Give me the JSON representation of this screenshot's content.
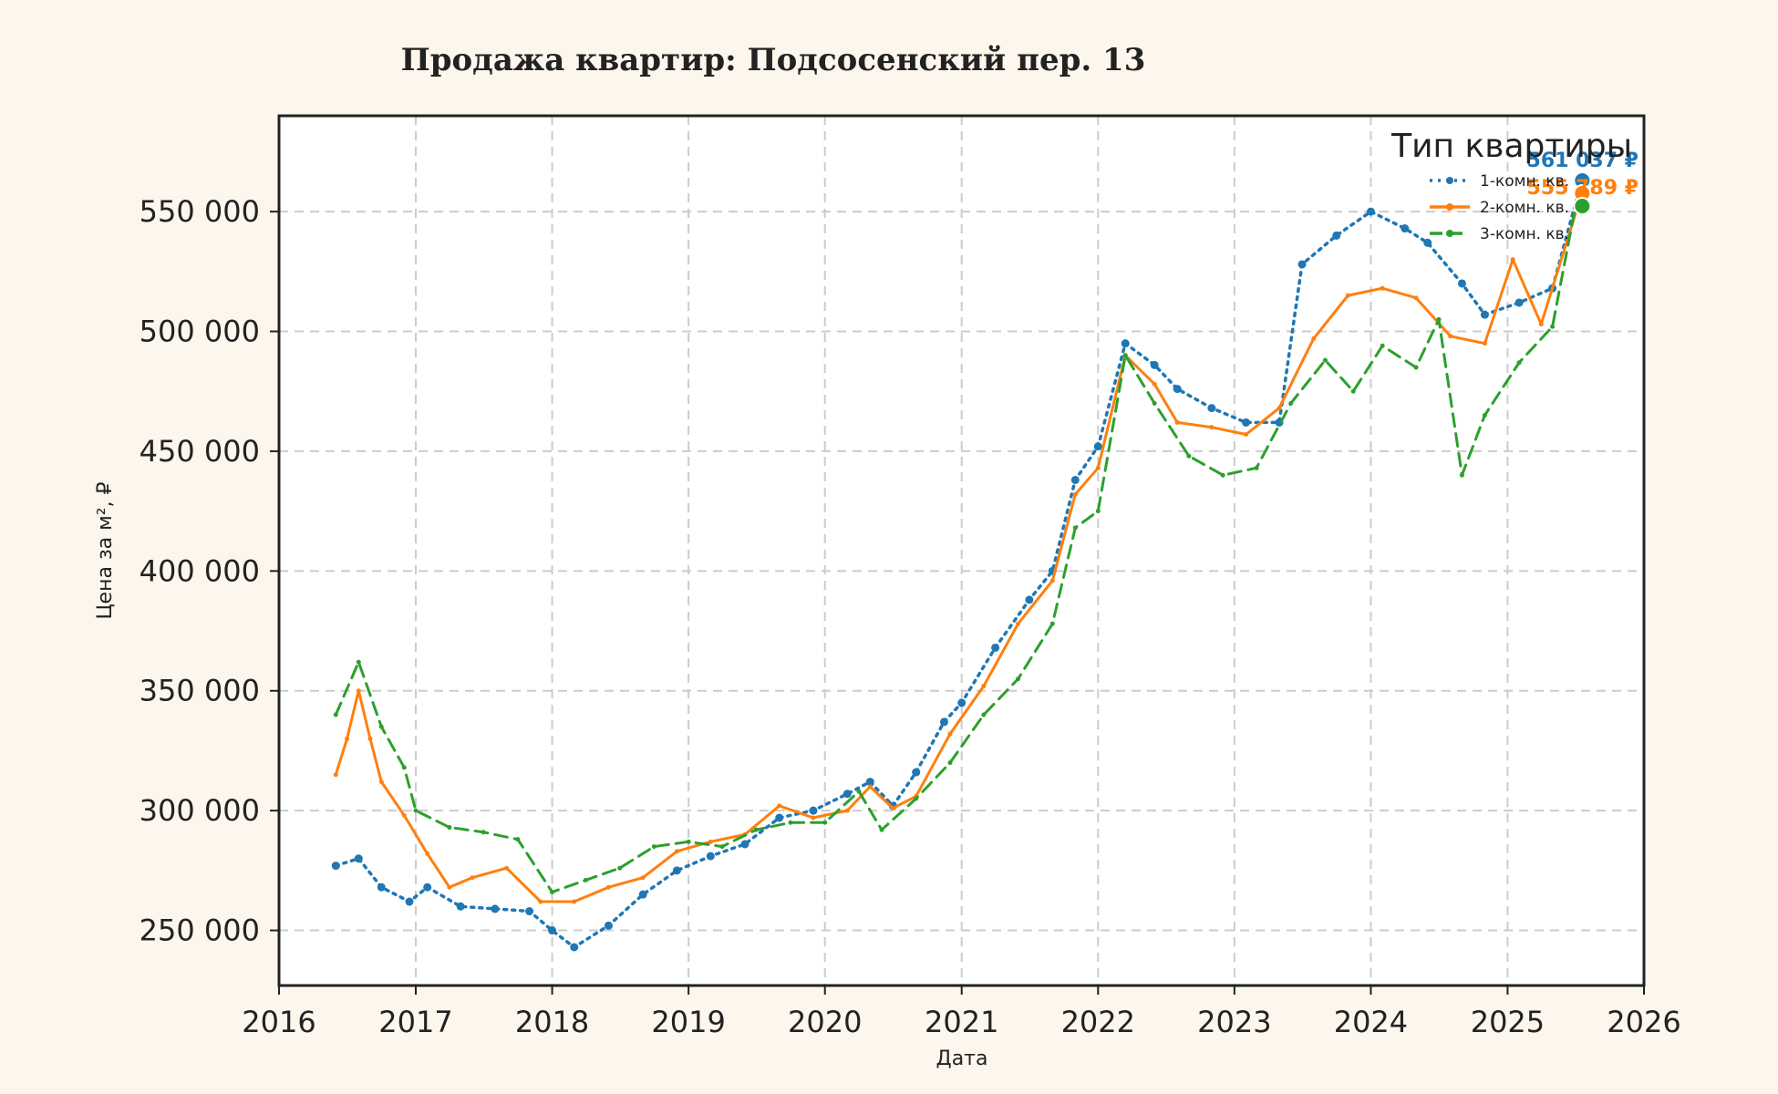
{
  "chart_data": {
    "type": "line",
    "title": "Продажа квартир: Подсосенский пер. 13",
    "xlabel": "Дата",
    "ylabel": "Цена за м², ₽",
    "xlim": [
      "2016-01-01",
      "2026-01-01"
    ],
    "ylim": [
      227000,
      590000
    ],
    "x_ticks": [
      "2016",
      "2017",
      "2018",
      "2019",
      "2020",
      "2021",
      "2022",
      "2023",
      "2024",
      "2025",
      "2026"
    ],
    "y_ticks": [
      250000,
      300000,
      350000,
      400000,
      450000,
      500000,
      550000
    ],
    "y_tick_labels": [
      "250 000",
      "300 000",
      "350 000",
      "400 000",
      "450 000",
      "500 000",
      "550 000"
    ],
    "grid": true,
    "legend": {
      "title": "Тип квартиры",
      "position": "top-right",
      "entries": [
        "1-комн. кв.",
        "2-комн. кв.",
        "3-комн. кв."
      ]
    },
    "series": [
      {
        "name": "1-комн. кв.",
        "color": "#1f77b4",
        "style": "dotted",
        "end_label": "561 037 ₽",
        "points": [
          [
            "2016-06-01",
            277000
          ],
          [
            "2016-08-01",
            280000
          ],
          [
            "2016-10-01",
            268000
          ],
          [
            "2016-12-15",
            262000
          ],
          [
            "2017-02-01",
            268000
          ],
          [
            "2017-05-01",
            260000
          ],
          [
            "2017-08-01",
            259000
          ],
          [
            "2017-11-01",
            258000
          ],
          [
            "2018-01-01",
            250000
          ],
          [
            "2018-03-01",
            243000
          ],
          [
            "2018-06-01",
            252000
          ],
          [
            "2018-09-01",
            265000
          ],
          [
            "2018-12-01",
            275000
          ],
          [
            "2019-03-01",
            281000
          ],
          [
            "2019-06-01",
            286000
          ],
          [
            "2019-09-01",
            297000
          ],
          [
            "2019-12-01",
            300000
          ],
          [
            "2020-03-01",
            307000
          ],
          [
            "2020-05-01",
            312000
          ],
          [
            "2020-07-01",
            302000
          ],
          [
            "2020-09-01",
            316000
          ],
          [
            "2020-11-15",
            337000
          ],
          [
            "2021-01-01",
            345000
          ],
          [
            "2021-04-01",
            368000
          ],
          [
            "2021-07-01",
            388000
          ],
          [
            "2021-09-01",
            400000
          ],
          [
            "2021-11-01",
            438000
          ],
          [
            "2022-01-01",
            452000
          ],
          [
            "2022-03-15",
            495000
          ],
          [
            "2022-06-01",
            486000
          ],
          [
            "2022-08-01",
            476000
          ],
          [
            "2022-11-01",
            468000
          ],
          [
            "2023-02-01",
            462000
          ],
          [
            "2023-05-01",
            462000
          ],
          [
            "2023-07-01",
            528000
          ],
          [
            "2023-10-01",
            540000
          ],
          [
            "2024-01-01",
            550000
          ],
          [
            "2024-04-01",
            543000
          ],
          [
            "2024-06-01",
            537000
          ],
          [
            "2024-09-01",
            520000
          ],
          [
            "2024-11-01",
            507000
          ],
          [
            "2025-02-01",
            512000
          ],
          [
            "2025-05-01",
            518000
          ],
          [
            "2025-07-15",
            561037
          ]
        ]
      },
      {
        "name": "2-комн. кв.",
        "color": "#ff7f0e",
        "style": "solid",
        "end_label": "555 789 ₽",
        "points": [
          [
            "2016-06-01",
            315000
          ],
          [
            "2016-07-01",
            330000
          ],
          [
            "2016-08-01",
            350000
          ],
          [
            "2016-09-01",
            330000
          ],
          [
            "2016-10-01",
            312000
          ],
          [
            "2016-12-01",
            298000
          ],
          [
            "2017-02-01",
            282000
          ],
          [
            "2017-04-01",
            268000
          ],
          [
            "2017-06-01",
            272000
          ],
          [
            "2017-09-01",
            276000
          ],
          [
            "2017-12-01",
            262000
          ],
          [
            "2018-03-01",
            262000
          ],
          [
            "2018-06-01",
            268000
          ],
          [
            "2018-09-01",
            272000
          ],
          [
            "2018-12-01",
            283000
          ],
          [
            "2019-03-01",
            287000
          ],
          [
            "2019-06-01",
            290000
          ],
          [
            "2019-09-01",
            302000
          ],
          [
            "2019-12-01",
            297000
          ],
          [
            "2020-03-01",
            300000
          ],
          [
            "2020-05-01",
            310000
          ],
          [
            "2020-07-01",
            301000
          ],
          [
            "2020-09-01",
            306000
          ],
          [
            "2020-12-01",
            332000
          ],
          [
            "2021-03-01",
            352000
          ],
          [
            "2021-06-01",
            378000
          ],
          [
            "2021-09-01",
            396000
          ],
          [
            "2021-11-01",
            432000
          ],
          [
            "2022-01-01",
            443000
          ],
          [
            "2022-03-15",
            490000
          ],
          [
            "2022-06-01",
            478000
          ],
          [
            "2022-08-01",
            462000
          ],
          [
            "2022-11-01",
            460000
          ],
          [
            "2023-02-01",
            457000
          ],
          [
            "2023-05-01",
            468000
          ],
          [
            "2023-08-01",
            497000
          ],
          [
            "2023-11-01",
            515000
          ],
          [
            "2024-02-01",
            518000
          ],
          [
            "2024-05-01",
            514000
          ],
          [
            "2024-08-01",
            498000
          ],
          [
            "2024-11-01",
            495000
          ],
          [
            "2025-01-15",
            530000
          ],
          [
            "2025-04-01",
            503000
          ],
          [
            "2025-07-15",
            555789
          ]
        ]
      },
      {
        "name": "3-комн. кв.",
        "color": "#2ca02c",
        "style": "dashed",
        "end_label": "",
        "points": [
          [
            "2016-06-01",
            340000
          ],
          [
            "2016-08-01",
            362000
          ],
          [
            "2016-10-01",
            335000
          ],
          [
            "2016-12-01",
            318000
          ],
          [
            "2017-01-01",
            300000
          ],
          [
            "2017-04-01",
            293000
          ],
          [
            "2017-07-01",
            291000
          ],
          [
            "2017-10-01",
            288000
          ],
          [
            "2018-01-01",
            266000
          ],
          [
            "2018-04-01",
            271000
          ],
          [
            "2018-07-01",
            276000
          ],
          [
            "2018-10-01",
            285000
          ],
          [
            "2019-01-01",
            287000
          ],
          [
            "2019-04-01",
            285000
          ],
          [
            "2019-07-01",
            292000
          ],
          [
            "2019-10-01",
            295000
          ],
          [
            "2020-01-01",
            295000
          ],
          [
            "2020-04-01",
            308000
          ],
          [
            "2020-06-01",
            292000
          ],
          [
            "2020-09-01",
            305000
          ],
          [
            "2020-12-01",
            320000
          ],
          [
            "2021-03-01",
            340000
          ],
          [
            "2021-06-01",
            355000
          ],
          [
            "2021-09-01",
            378000
          ],
          [
            "2021-11-01",
            418000
          ],
          [
            "2022-01-01",
            425000
          ],
          [
            "2022-03-15",
            490000
          ],
          [
            "2022-06-01",
            470000
          ],
          [
            "2022-09-01",
            448000
          ],
          [
            "2022-12-01",
            440000
          ],
          [
            "2023-03-01",
            443000
          ],
          [
            "2023-06-01",
            470000
          ],
          [
            "2023-09-01",
            488000
          ],
          [
            "2023-11-15",
            475000
          ],
          [
            "2024-02-01",
            494000
          ],
          [
            "2024-05-01",
            485000
          ],
          [
            "2024-07-01",
            505000
          ],
          [
            "2024-09-01",
            440000
          ],
          [
            "2024-11-01",
            465000
          ],
          [
            "2025-02-01",
            487000
          ],
          [
            "2025-05-01",
            502000
          ],
          [
            "2025-07-15",
            563000
          ]
        ]
      }
    ]
  }
}
